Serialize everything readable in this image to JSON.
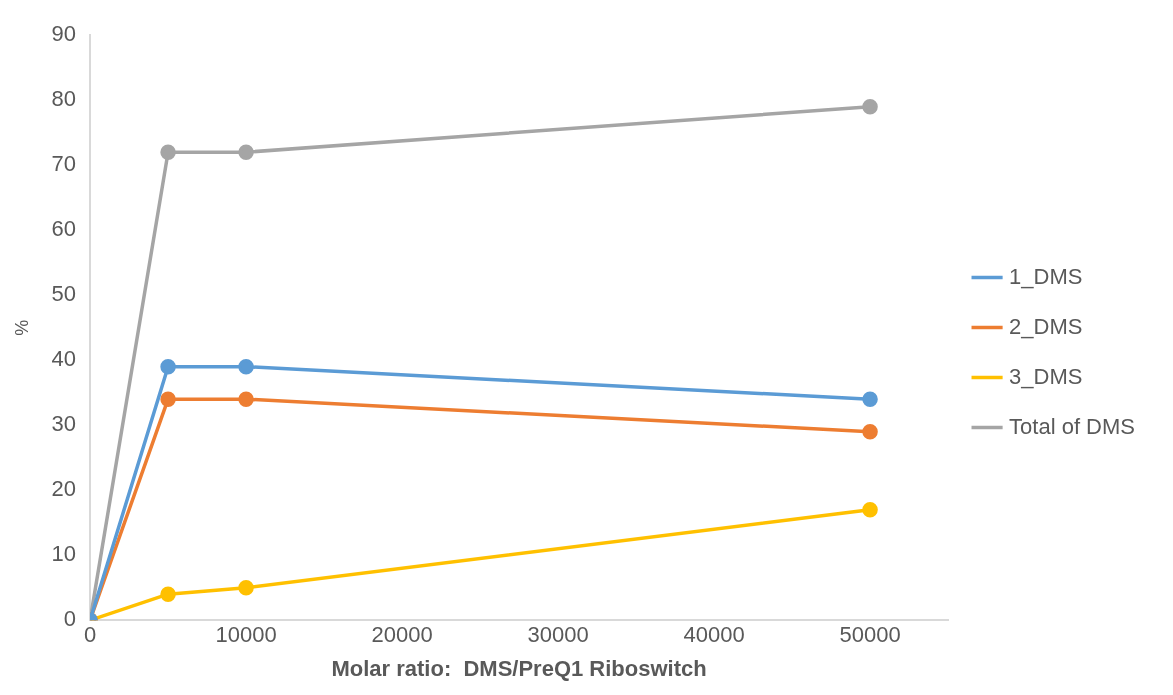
{
  "chart_data": {
    "type": "line",
    "xlabel": "Molar ratio:  DMS/PreQ1 Riboswitch",
    "ylabel": "%",
    "x": [
      0,
      5000,
      10000,
      50000
    ],
    "xlim": [
      0,
      55000
    ],
    "xticks": [
      0,
      10000,
      20000,
      30000,
      40000,
      50000
    ],
    "ylim": [
      0,
      90
    ],
    "yticks": [
      0,
      10,
      20,
      30,
      40,
      50,
      60,
      70,
      80,
      90
    ],
    "grid": false,
    "legend": "right",
    "marker": "circle",
    "line_style": "solid",
    "series": [
      {
        "name": "1_DMS",
        "color": "#5b9bd5",
        "values": [
          0,
          39,
          39,
          34
        ]
      },
      {
        "name": "2_DMS",
        "color": "#ed7d31",
        "values": [
          0,
          34,
          34,
          29
        ]
      },
      {
        "name": "3_DMS",
        "color": "#ffc000",
        "values": [
          0,
          4,
          5,
          17
        ]
      },
      {
        "name": "Total of DMS",
        "color": "#a5a5a5",
        "values": [
          0,
          72,
          72,
          79
        ]
      }
    ]
  }
}
